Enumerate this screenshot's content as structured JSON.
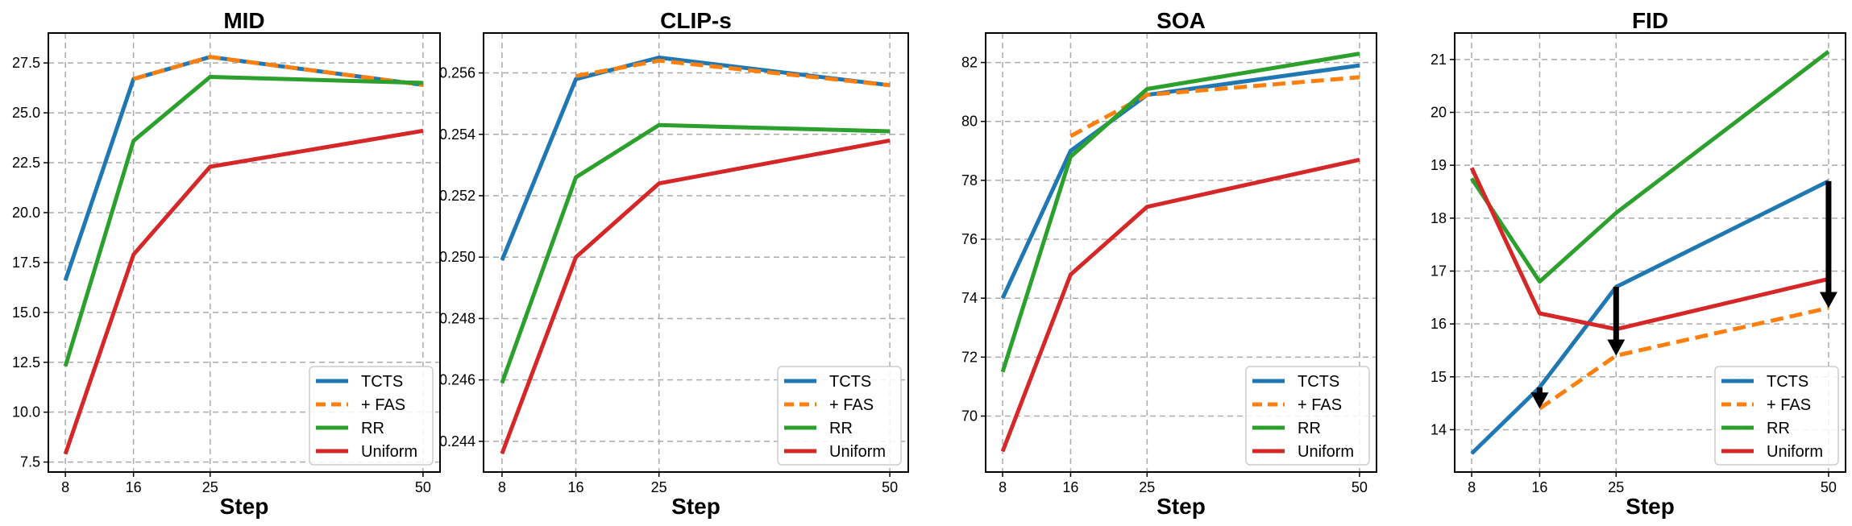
{
  "chart_data": [
    {
      "type": "line",
      "title": "MID",
      "xlabel": "Step",
      "ylabel": "",
      "x": [
        8,
        16,
        25,
        50
      ],
      "xticks": [
        "8",
        "16",
        "25",
        "50"
      ],
      "xlim": [
        6,
        52
      ],
      "ylim": [
        7.0,
        29.0
      ],
      "yticks": [
        7.5,
        10.0,
        12.5,
        15.0,
        17.5,
        20.0,
        22.5,
        25.0,
        27.5
      ],
      "ytick_labels": [
        "7.5",
        "10.0",
        "12.5",
        "15.0",
        "17.5",
        "20.0",
        "22.5",
        "25.0",
        "27.5"
      ],
      "grid": true,
      "legend": "lower-right",
      "series": [
        {
          "name": "TCTS",
          "values": [
            16.6,
            26.7,
            27.8,
            26.4
          ]
        },
        {
          "name": "+ FAS",
          "values": [
            null,
            26.7,
            27.8,
            26.4
          ]
        },
        {
          "name": "RR",
          "values": [
            12.3,
            23.6,
            26.8,
            26.5
          ]
        },
        {
          "name": "Uniform",
          "values": [
            7.9,
            17.9,
            22.3,
            24.1
          ]
        }
      ],
      "arrows": []
    },
    {
      "type": "line",
      "title": "CLIP-s",
      "xlabel": "Step",
      "ylabel": "",
      "x": [
        8,
        16,
        25,
        50
      ],
      "xticks": [
        "8",
        "16",
        "25",
        "50"
      ],
      "xlim": [
        6,
        52
      ],
      "ylim": [
        0.243,
        0.2573
      ],
      "yticks": [
        0.244,
        0.246,
        0.248,
        0.25,
        0.252,
        0.254,
        0.256
      ],
      "ytick_labels": [
        "0.244",
        "0.246",
        "0.248",
        "0.250",
        "0.252",
        "0.254",
        "0.256"
      ],
      "grid": true,
      "legend": "lower-right",
      "series": [
        {
          "name": "TCTS",
          "values": [
            0.2499,
            0.2558,
            0.2565,
            0.2556
          ]
        },
        {
          "name": "+ FAS",
          "values": [
            null,
            0.2559,
            0.2564,
            0.2556
          ]
        },
        {
          "name": "RR",
          "values": [
            0.2459,
            0.2526,
            0.2543,
            0.2541
          ]
        },
        {
          "name": "Uniform",
          "values": [
            0.2436,
            0.25,
            0.2524,
            0.2538
          ]
        }
      ],
      "arrows": []
    },
    {
      "type": "line",
      "title": "SOA",
      "xlabel": "Step",
      "ylabel": "",
      "x": [
        8,
        16,
        25,
        50
      ],
      "xticks": [
        "8",
        "16",
        "25",
        "50"
      ],
      "xlim": [
        6,
        52
      ],
      "ylim": [
        68.1,
        83.0
      ],
      "yticks": [
        70,
        72,
        74,
        76,
        78,
        80,
        82
      ],
      "ytick_labels": [
        "70",
        "72",
        "74",
        "76",
        "78",
        "80",
        "82"
      ],
      "grid": true,
      "legend": "lower-right",
      "series": [
        {
          "name": "TCTS",
          "values": [
            74.0,
            79.0,
            80.9,
            81.9
          ]
        },
        {
          "name": "+ FAS",
          "values": [
            null,
            79.5,
            80.9,
            81.5
          ]
        },
        {
          "name": "RR",
          "values": [
            71.5,
            78.8,
            81.1,
            82.3
          ]
        },
        {
          "name": "Uniform",
          "values": [
            68.8,
            74.8,
            77.1,
            78.7
          ]
        }
      ],
      "arrows": []
    },
    {
      "type": "line",
      "title": "FID",
      "xlabel": "Step",
      "ylabel": "",
      "x": [
        8,
        16,
        25,
        50
      ],
      "xticks": [
        "8",
        "16",
        "25",
        "50"
      ],
      "xlim": [
        6,
        52
      ],
      "ylim": [
        13.2,
        21.5
      ],
      "yticks": [
        14,
        15,
        16,
        17,
        18,
        19,
        20,
        21
      ],
      "ytick_labels": [
        "14",
        "15",
        "16",
        "17",
        "18",
        "19",
        "20",
        "21"
      ],
      "grid": true,
      "legend": "lower-right",
      "series": [
        {
          "name": "TCTS",
          "values": [
            13.55,
            14.8,
            16.7,
            18.7
          ]
        },
        {
          "name": "+ FAS",
          "values": [
            null,
            14.4,
            15.4,
            16.3
          ]
        },
        {
          "name": "RR",
          "values": [
            18.75,
            16.8,
            18.1,
            21.15
          ]
        },
        {
          "name": "Uniform",
          "values": [
            18.95,
            16.2,
            15.9,
            16.85
          ]
        }
      ],
      "arrows": [
        {
          "x": 16,
          "from": 14.8,
          "to": 14.4
        },
        {
          "x": 25,
          "from": 16.7,
          "to": 15.4
        },
        {
          "x": 50,
          "from": 18.7,
          "to": 16.3
        }
      ]
    }
  ],
  "style": {
    "colors": {
      "TCTS": "#1f77b4",
      "+ FAS": "#ff7f0e",
      "RR": "#2ca02c",
      "Uniform": "#d62728"
    },
    "dashed": [
      "+ FAS"
    ],
    "grid_color": "#aaaaaa",
    "arrow_color": "#000000"
  }
}
